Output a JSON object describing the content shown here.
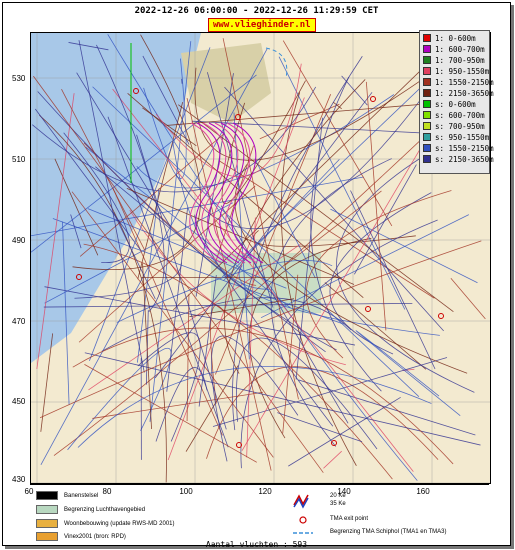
{
  "header": {
    "title": "2022-12-26 06:00:00 - 2022-12-26 11:29:59 CET",
    "site": "www.vlieghinder.nl"
  },
  "axes": {
    "y_ticks": [
      "530",
      "510",
      "490",
      "470",
      "450",
      "430"
    ],
    "x_ticks": [
      "60",
      "80",
      "100",
      "120",
      "140",
      "160"
    ]
  },
  "legend": [
    {
      "label": "1: 0-600m",
      "color": "#e00000"
    },
    {
      "label": "1: 600-700m",
      "color": "#b000c0"
    },
    {
      "label": "1: 700-950m",
      "color": "#208020"
    },
    {
      "label": "1: 950-1550m",
      "color": "#e04060"
    },
    {
      "label": "1: 1550-2150m",
      "color": "#a03020"
    },
    {
      "label": "1: 2150-3650m",
      "color": "#702010"
    },
    {
      "label": "s: 0-600m",
      "color": "#00c000"
    },
    {
      "label": "s: 600-700m",
      "color": "#80e000"
    },
    {
      "label": "s: 700-950m",
      "color": "#c0e020"
    },
    {
      "label": "s: 950-1550m",
      "color": "#30a0a0"
    },
    {
      "label": "s: 1550-2150m",
      "color": "#3050c0"
    },
    {
      "label": "s: 2150-3650m",
      "color": "#303090"
    }
  ],
  "map_key": {
    "left": [
      {
        "label": "Banenstelsel",
        "color": "#000000"
      },
      {
        "label": "Begrenzing Luchthavengebied",
        "color": "#b8d8c0"
      },
      {
        "label": "Woonbebouwing (update RWS-MD 2001)",
        "color": "#e8b040"
      },
      {
        "label": "Vinex2001 (bron: RPD)",
        "color": "#e8a030"
      }
    ],
    "right": [
      {
        "label": "20 Ke"
      },
      {
        "label": "35 Ke"
      },
      {
        "label": "TMA exit point"
      },
      {
        "label": "Begrenzing TMA Schiphol  (TMA1 en TMA3)"
      }
    ]
  },
  "footer": {
    "count": "Aantal vluchten : 593"
  }
}
